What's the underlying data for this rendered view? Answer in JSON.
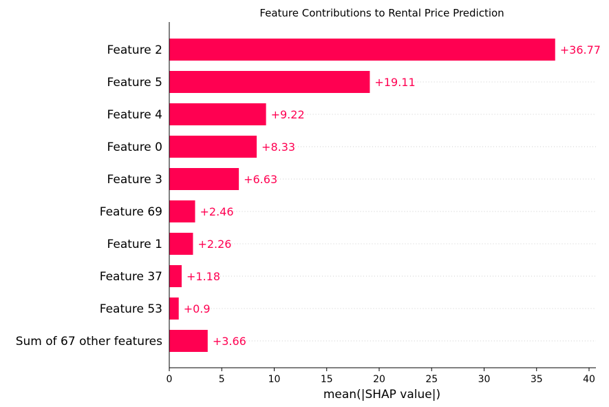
{
  "chart_data": {
    "type": "bar",
    "orientation": "horizontal",
    "title": "Feature Contributions to Rental Price Prediction",
    "xlabel": "mean(|SHAP value|)",
    "ylabel": "",
    "xlim": [
      0,
      40.5
    ],
    "xticks": [
      0,
      5,
      10,
      15,
      20,
      25,
      30,
      35,
      40
    ],
    "categories": [
      "Feature 2",
      "Feature 5",
      "Feature 4",
      "Feature 0",
      "Feature 3",
      "Feature 69",
      "Feature 1",
      "Feature 37",
      "Feature 53",
      "Sum of 67 other features"
    ],
    "values": [
      36.77,
      19.11,
      9.22,
      8.33,
      6.63,
      2.46,
      2.26,
      1.18,
      0.9,
      3.66
    ],
    "value_labels": [
      "+36.77",
      "+19.11",
      "+9.22",
      "+8.33",
      "+6.63",
      "+2.46",
      "+2.26",
      "+1.18",
      "+0.9",
      "+3.66"
    ],
    "bar_color": "#ff0051",
    "grid": "dotted horizontal guide lines"
  }
}
